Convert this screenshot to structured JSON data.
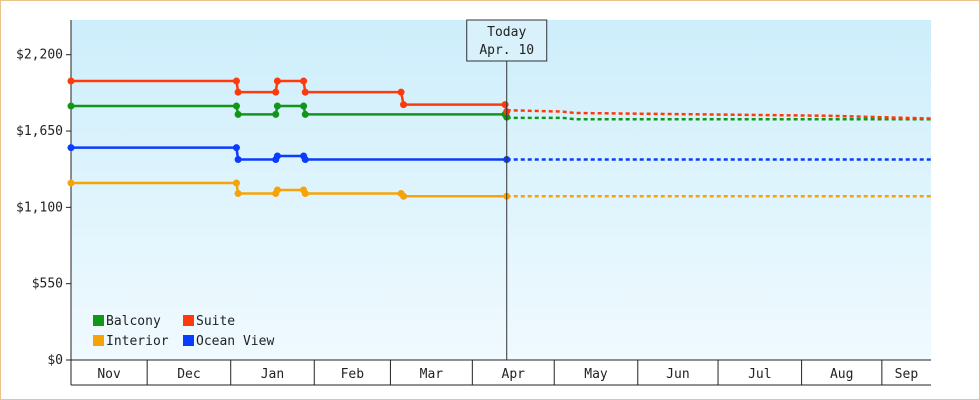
{
  "chart_data": {
    "type": "line",
    "today_marker": {
      "line1": "Today",
      "line2": "Apr. 10",
      "x": 5.32
    },
    "y_ticks": [
      {
        "value": 0,
        "label": "$0"
      },
      {
        "value": 550,
        "label": "$550"
      },
      {
        "value": 1100,
        "label": "$1,100"
      },
      {
        "value": 1650,
        "label": "$1,650"
      },
      {
        "value": 2200,
        "label": "$2,200"
      }
    ],
    "ylim": [
      0,
      2450
    ],
    "xlim": [
      0,
      10.5
    ],
    "month_ticks": [
      {
        "label": "Nov",
        "start": 0.0,
        "end": 0.93
      },
      {
        "label": "Dec",
        "start": 0.93,
        "end": 1.95
      },
      {
        "label": "Jan",
        "start": 1.95,
        "end": 2.97
      },
      {
        "label": "Feb",
        "start": 2.97,
        "end": 3.9
      },
      {
        "label": "Mar",
        "start": 3.9,
        "end": 4.9
      },
      {
        "label": "Apr",
        "start": 4.9,
        "end": 5.9
      },
      {
        "label": "May",
        "start": 5.9,
        "end": 6.92
      },
      {
        "label": "Jun",
        "start": 6.92,
        "end": 7.9
      },
      {
        "label": "Jul",
        "start": 7.9,
        "end": 8.92
      },
      {
        "label": "Aug",
        "start": 8.92,
        "end": 9.9
      },
      {
        "label": "Sep",
        "start": 9.9,
        "end": 10.5
      }
    ],
    "series": [
      {
        "name": "Balcony",
        "color": "#11961a",
        "points": [
          [
            0.0,
            1830
          ],
          [
            2.02,
            1830
          ],
          [
            2.04,
            1770
          ],
          [
            2.5,
            1770
          ],
          [
            2.52,
            1830
          ],
          [
            2.84,
            1830
          ],
          [
            2.86,
            1770
          ],
          [
            5.3,
            1770
          ],
          [
            5.32,
            1750
          ]
        ],
        "forecast": [
          [
            5.32,
            1745
          ],
          [
            6.0,
            1745
          ],
          [
            6.15,
            1735
          ],
          [
            10.5,
            1735
          ]
        ]
      },
      {
        "name": "Suite",
        "color": "#ff3a0a",
        "points": [
          [
            0.0,
            2010
          ],
          [
            2.02,
            2010
          ],
          [
            2.04,
            1930
          ],
          [
            2.5,
            1930
          ],
          [
            2.52,
            2010
          ],
          [
            2.84,
            2010
          ],
          [
            2.86,
            1930
          ],
          [
            4.03,
            1930
          ],
          [
            4.06,
            1840
          ],
          [
            5.3,
            1840
          ],
          [
            5.32,
            1790
          ]
        ],
        "forecast": [
          [
            5.32,
            1800
          ],
          [
            6.0,
            1790
          ],
          [
            6.15,
            1780
          ],
          [
            9.25,
            1760
          ],
          [
            10.5,
            1740
          ]
        ]
      },
      {
        "name": "Ocean View",
        "color": "#0a3cff",
        "points": [
          [
            0.0,
            1530
          ],
          [
            2.02,
            1530
          ],
          [
            2.04,
            1445
          ],
          [
            2.5,
            1445
          ],
          [
            2.52,
            1470
          ],
          [
            2.84,
            1470
          ],
          [
            2.86,
            1445
          ],
          [
            5.32,
            1445
          ]
        ],
        "forecast": [
          [
            5.32,
            1445
          ],
          [
            10.5,
            1445
          ]
        ]
      },
      {
        "name": "Interior",
        "color": "#f5a306",
        "points": [
          [
            0.0,
            1275
          ],
          [
            2.02,
            1275
          ],
          [
            2.04,
            1200
          ],
          [
            2.5,
            1200
          ],
          [
            2.52,
            1225
          ],
          [
            2.84,
            1225
          ],
          [
            2.86,
            1200
          ],
          [
            4.03,
            1200
          ],
          [
            4.06,
            1180
          ],
          [
            5.32,
            1180
          ]
        ],
        "forecast": [
          [
            5.32,
            1180
          ],
          [
            10.5,
            1180
          ]
        ]
      }
    ],
    "legend": [
      {
        "label": "Balcony",
        "color": "#11961a"
      },
      {
        "label": "Suite",
        "color": "#ff3a0a"
      },
      {
        "label": "Interior",
        "color": "#f5a306"
      },
      {
        "label": "Ocean View",
        "color": "#0a3cff"
      }
    ],
    "legend_position": "bottom-left",
    "grid": false
  }
}
